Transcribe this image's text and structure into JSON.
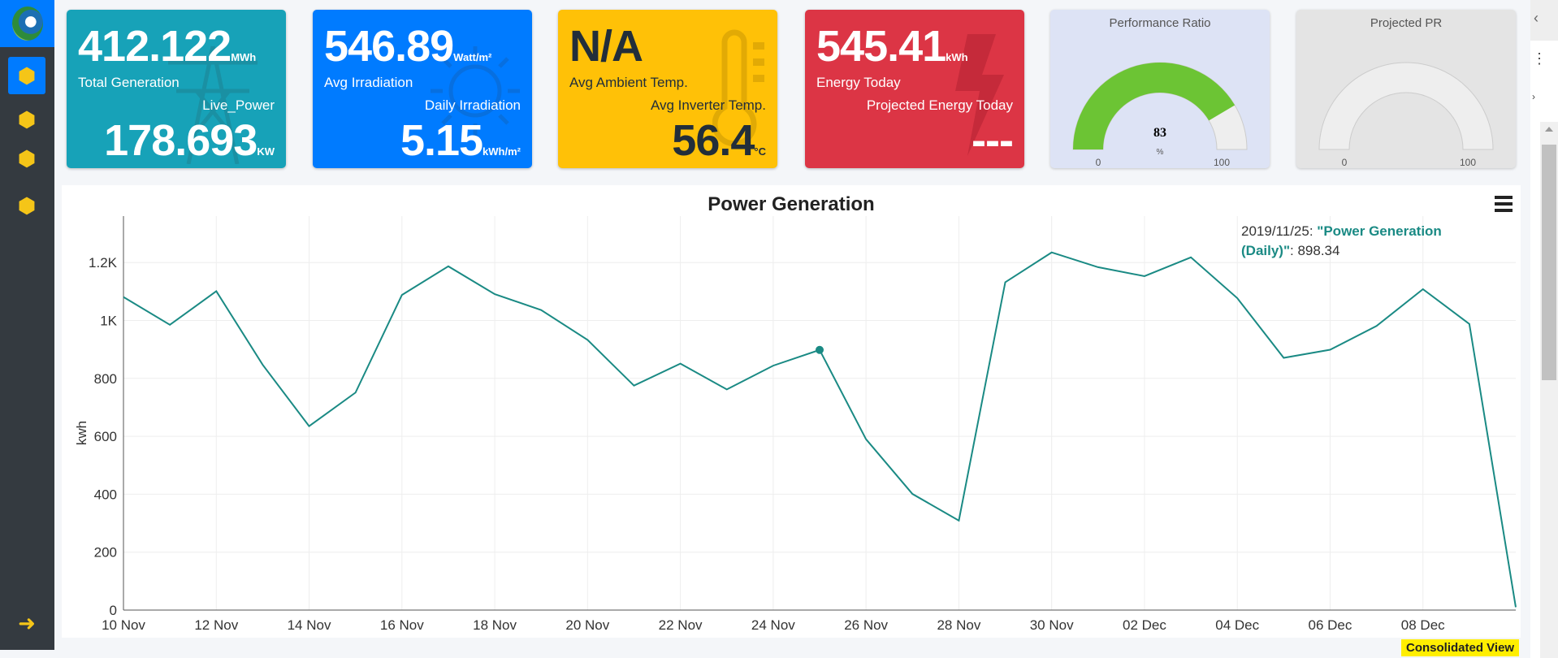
{
  "sidebar": {
    "items": [
      {
        "icon": "cubes-icon",
        "active": true
      },
      {
        "icon": "cube-icon"
      },
      {
        "icon": "cube-icon"
      },
      {
        "icon": "cube-icon"
      }
    ],
    "logout_icon": "sign-out-icon"
  },
  "cards": [
    {
      "value": "412.122",
      "unit": "MWh",
      "label": "Total Generation",
      "sub_label": "Live_Power",
      "sub_value": "178.693",
      "sub_unit": "KW",
      "color": "#17a2b8"
    },
    {
      "value": "546.89",
      "unit": "Watt/m²",
      "label": "Avg Irradiation",
      "sub_label": "Daily Irradiation",
      "sub_value": "5.15",
      "sub_unit": "kWh/m²",
      "color": "#007bff"
    },
    {
      "value": "N/A",
      "unit": "",
      "label": "Avg Ambient Temp.",
      "sub_label": "Avg Inverter Temp.",
      "sub_value": "56.4",
      "sub_unit": "°C",
      "color": "#ffc107"
    },
    {
      "value": "545.41",
      "unit": "kWh",
      "label": "Energy Today",
      "sub_label": "Projected Energy Today",
      "sub_value": "---",
      "sub_unit": "",
      "color": "#dc3545"
    }
  ],
  "gauges": [
    {
      "title": "Performance Ratio",
      "value": 83,
      "value_text": "83",
      "unit": "%",
      "min": "0",
      "max": "100",
      "fill": "#6cc434",
      "bg": "#dde3f5"
    },
    {
      "title": "Projected PR",
      "value": null,
      "min": "0",
      "max": "100",
      "bg": "#e4e4e4"
    }
  ],
  "chart_data": {
    "type": "line",
    "title": "Power Generation",
    "ylabel": "kwh",
    "xlabel": "",
    "ylim": [
      0,
      1300
    ],
    "yticks": [
      0,
      200,
      400,
      600,
      800,
      1000,
      1200
    ],
    "ytick_labels": [
      "0",
      "200",
      "400",
      "600",
      "800",
      "1K",
      "1.2K"
    ],
    "x": [
      "10 Nov",
      "11 Nov",
      "12 Nov",
      "13 Nov",
      "14 Nov",
      "15 Nov",
      "16 Nov",
      "17 Nov",
      "18 Nov",
      "19 Nov",
      "20 Nov",
      "21 Nov",
      "22 Nov",
      "23 Nov",
      "24 Nov",
      "25 Nov",
      "26 Nov",
      "27 Nov",
      "28 Nov",
      "29 Nov",
      "30 Nov",
      "01 Dec",
      "02 Dec",
      "03 Dec",
      "04 Dec",
      "05 Dec",
      "06 Dec",
      "07 Dec",
      "08 Dec",
      "09 Dec",
      "10 Dec"
    ],
    "xtick_labels": [
      "10 Nov",
      "12 Nov",
      "14 Nov",
      "16 Nov",
      "18 Nov",
      "20 Nov",
      "22 Nov",
      "24 Nov",
      "26 Nov",
      "28 Nov",
      "30 Nov",
      "02 Dec",
      "04 Dec",
      "06 Dec",
      "08 Dec"
    ],
    "series": [
      {
        "name": "Power Generation (Daily)",
        "color": "#1a8a84",
        "values": [
          1081,
          985,
          1101,
          847,
          635,
          751,
          1088,
          1187,
          1091,
          1036,
          933,
          775,
          851,
          762,
          844,
          898.34,
          590,
          401,
          309,
          1132,
          1235,
          1184,
          1153,
          1218,
          1077,
          871,
          899,
          981,
          1108,
          988,
          10
        ]
      }
    ],
    "tooltip": {
      "date": "2019/11/25:",
      "series": "\"Power Generation (Daily)\"",
      "value": ": 898.34",
      "index": 15
    },
    "grid": true,
    "menu_icon": "hamburger-icon"
  },
  "consolidated_label": "Consolidated View"
}
